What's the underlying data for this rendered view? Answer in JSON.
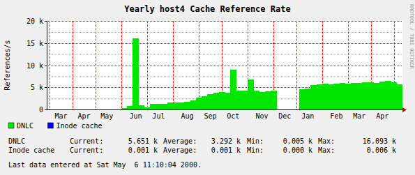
{
  "chart_data": {
    "type": "bar",
    "stacked": true,
    "title": "Yearly host4 Cache Reference Rate",
    "y_label": "References/s",
    "categories": [
      null,
      null,
      "Mar",
      null,
      null,
      null,
      "Apr",
      null,
      null,
      null,
      "May",
      null,
      null,
      null,
      null,
      "Jun",
      null,
      null,
      null,
      "Jul",
      null,
      null,
      null,
      null,
      "Aug",
      null,
      null,
      null,
      "Sep",
      null,
      null,
      null,
      "Oct",
      null,
      null,
      null,
      null,
      "Nov",
      null,
      null,
      null,
      "Dec",
      null,
      null,
      null,
      "Jan",
      null,
      null,
      null,
      null,
      "Feb",
      null,
      null,
      null,
      "Mar",
      null,
      null,
      null,
      "Apr",
      null,
      null,
      null
    ],
    "series": [
      {
        "name": "DNLC",
        "color": "#00e600",
        "values": [
          0,
          0,
          0,
          0,
          0,
          0,
          0,
          0,
          0,
          0,
          0,
          0,
          0,
          300,
          800,
          16093,
          1000,
          500,
          1200,
          1300,
          1200,
          1500,
          1600,
          1500,
          1700,
          2000,
          2600,
          3000,
          3400,
          3800,
          4000,
          3800,
          9000,
          4200,
          4300,
          6800,
          4200,
          4000,
          4100,
          4200,
          0,
          0,
          0,
          0,
          4500,
          4800,
          5500,
          5600,
          5800,
          5700,
          5900,
          6000,
          5800,
          6000,
          6000,
          6100,
          6200,
          6000,
          6300,
          6400,
          6200,
          5651
        ]
      },
      {
        "name": "Inode cache",
        "color": "#0000ff",
        "values": [
          0,
          0,
          0,
          0,
          0,
          0,
          0,
          0,
          0,
          0,
          0,
          0,
          0,
          1,
          1,
          1,
          1,
          1,
          1,
          1,
          1,
          1,
          1,
          1,
          1,
          1,
          1,
          1,
          1,
          1,
          1,
          1,
          1,
          1,
          1,
          1,
          1,
          1,
          1,
          1,
          0,
          0,
          0,
          0,
          1,
          1,
          1,
          1,
          1,
          1,
          1,
          1,
          1,
          1,
          1,
          1,
          1,
          1,
          1,
          1,
          1,
          1
        ]
      }
    ],
    "ylim": [
      0,
      20000
    ],
    "yticks": [
      0,
      {
        "value": 5000,
        "label": "5 k"
      },
      {
        "value": 10000,
        "label": "10 k"
      },
      {
        "value": 15000,
        "label": "15 k"
      },
      {
        "value": 20000,
        "label": "20 k"
      }
    ],
    "grid": true,
    "legend": "bottom-left"
  },
  "stats": {
    "labels": [
      "Current:",
      "Average:",
      "Min:",
      "Max:"
    ],
    "rows": [
      {
        "values": [
          "5.651 k",
          "3.292 k",
          "0.005 k",
          "16.093 k"
        ]
      },
      {
        "values": [
          "0.001 k",
          "0.001 k",
          "0.000 k",
          "0.006 k"
        ]
      }
    ]
  },
  "footer": "Last data entered at Sat May  6 11:10:04 2000.",
  "watermark": "RRDTOOL / TOBI OETIKER"
}
